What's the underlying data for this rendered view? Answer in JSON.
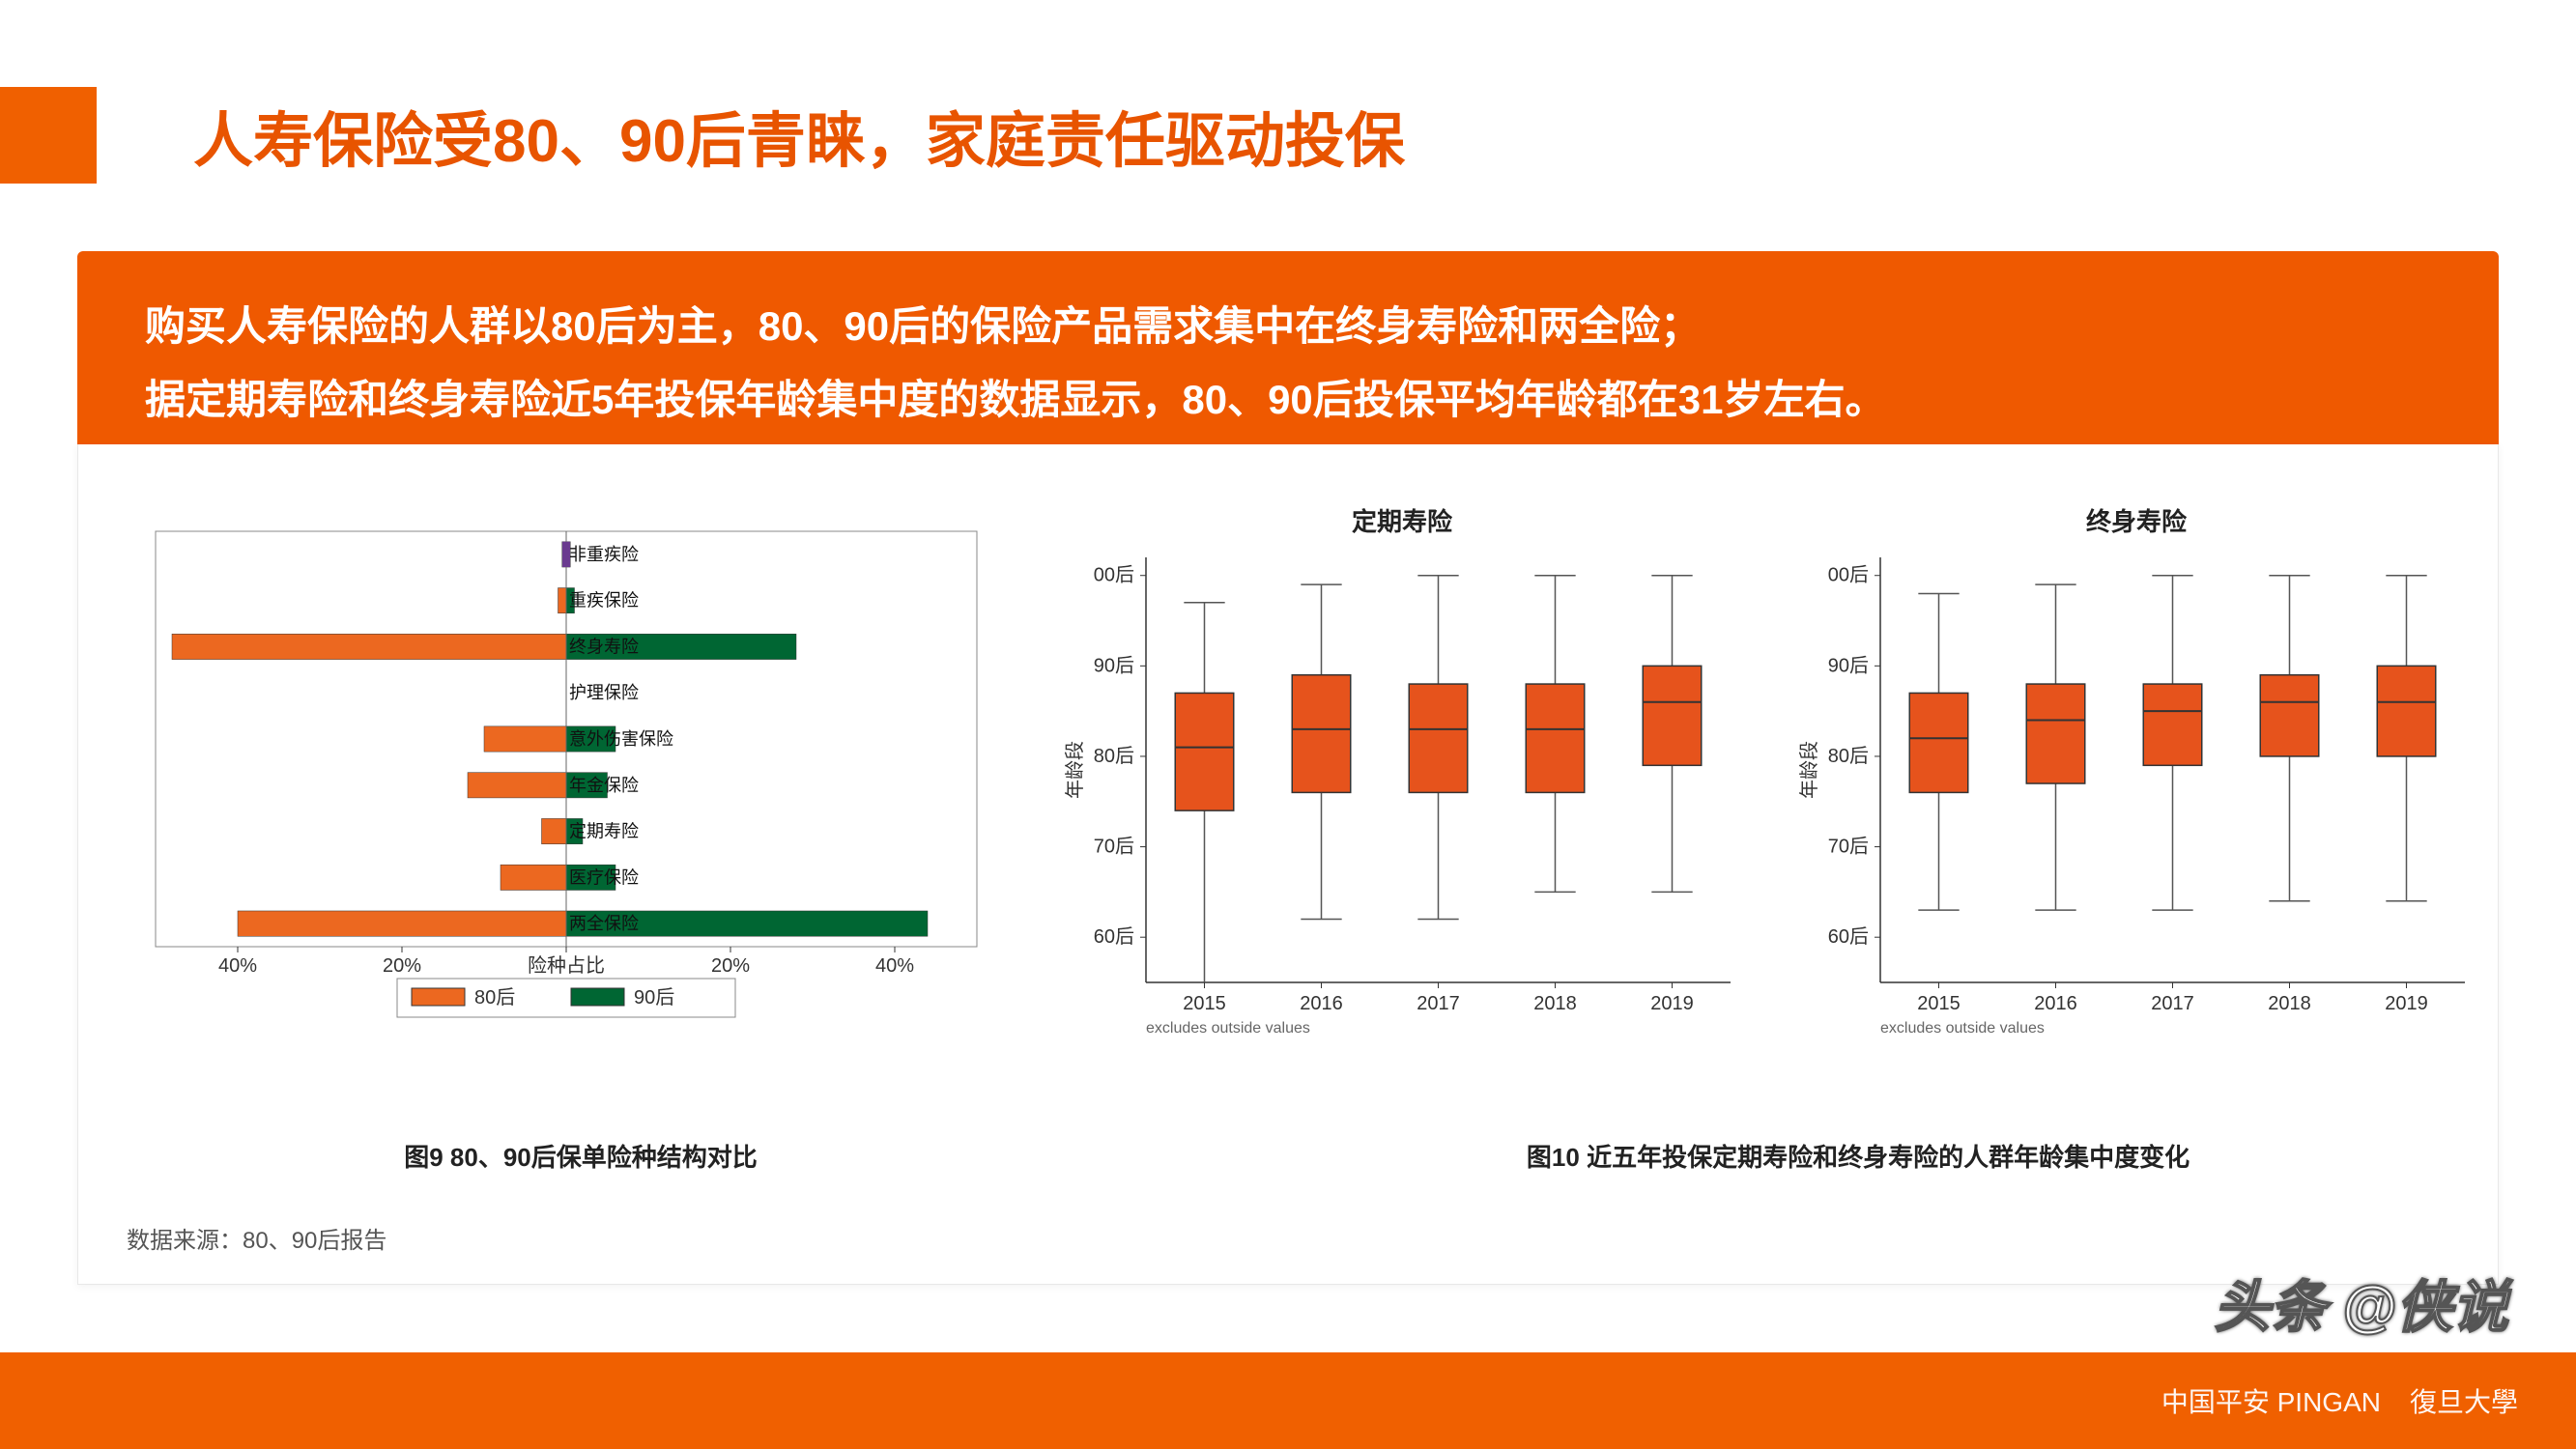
{
  "title": "人寿保险受80、90后青睐，家庭责任驱动投保",
  "banner_line1": "购买人寿保险的人群以80后为主，80、90后的保险产品需求集中在终身寿险和两全险；",
  "banner_line2": "据定期寿险和终身寿险近5年投保年龄集中度的数据显示，80、90后投保平均年龄都在31岁左右。",
  "colors": {
    "accent": "#f06000",
    "banner": "#ef5900",
    "bar80": "#ec6820",
    "bar90": "#006633",
    "box_fill": "#e6531c",
    "axis": "#333333",
    "grid": "#d0d0d0",
    "purple": "#6a3b8f"
  },
  "bar_chart": {
    "type": "diverging-bar",
    "categories": [
      "非重疾险",
      "重疾保险",
      "终身寿险",
      "护理保险",
      "意外伤害保险",
      "年金保险",
      "定期寿险",
      "医疗保险",
      "两全保险"
    ],
    "series80": [
      0.5,
      1,
      48,
      0,
      10,
      12,
      3,
      8,
      40
    ],
    "series90": [
      0.5,
      1,
      28,
      0,
      6,
      5,
      2,
      6,
      44
    ],
    "xlabel": "险种占比",
    "xticks": [
      "40%",
      "20%",
      "险种占比",
      "20%",
      "40%"
    ],
    "xtick_vals": [
      -40,
      -20,
      0,
      20,
      40
    ],
    "legend80": "80后",
    "legend90": "90后",
    "caption": "图9 80、90后保单险种结构对比",
    "left_color": "#ec6820",
    "right_color": "#006633",
    "label_fontsize": 18
  },
  "box_common": {
    "years": [
      "2015",
      "2016",
      "2017",
      "2018",
      "2019"
    ],
    "ylabel": "年龄段",
    "yticks": [
      "60后",
      "70后",
      "80后",
      "90后",
      "00后"
    ],
    "ytick_vals": [
      60,
      70,
      80,
      90,
      100
    ],
    "footnote": "excludes outside values",
    "box_fill": "#e6531c",
    "whisker_color": "#555555",
    "border_color": "#333333",
    "caption": "图10 近五年投保定期寿险和终身寿险的人群年龄集中度变化"
  },
  "box1": {
    "title": "定期寿险",
    "data": [
      {
        "low": 55,
        "q1": 74,
        "med": 81,
        "q3": 87,
        "high": 97
      },
      {
        "low": 62,
        "q1": 76,
        "med": 83,
        "q3": 89,
        "high": 99
      },
      {
        "low": 62,
        "q1": 76,
        "med": 83,
        "q3": 88,
        "high": 100
      },
      {
        "low": 65,
        "q1": 76,
        "med": 83,
        "q3": 88,
        "high": 100
      },
      {
        "low": 65,
        "q1": 79,
        "med": 86,
        "q3": 90,
        "high": 100
      }
    ]
  },
  "box2": {
    "title": "终身寿险",
    "data": [
      {
        "low": 63,
        "q1": 76,
        "med": 82,
        "q3": 87,
        "high": 98
      },
      {
        "low": 63,
        "q1": 77,
        "med": 84,
        "q3": 88,
        "high": 99
      },
      {
        "low": 63,
        "q1": 79,
        "med": 85,
        "q3": 88,
        "high": 100
      },
      {
        "low": 64,
        "q1": 80,
        "med": 86,
        "q3": 89,
        "high": 100
      },
      {
        "low": 64,
        "q1": 80,
        "med": 86,
        "q3": 90,
        "high": 100
      }
    ]
  },
  "source": "数据来源：80、90后报告",
  "watermark": "头条 @侠说",
  "footer": {
    "pingan": "中国平安 PINGAN",
    "fudan": "復旦大學"
  }
}
